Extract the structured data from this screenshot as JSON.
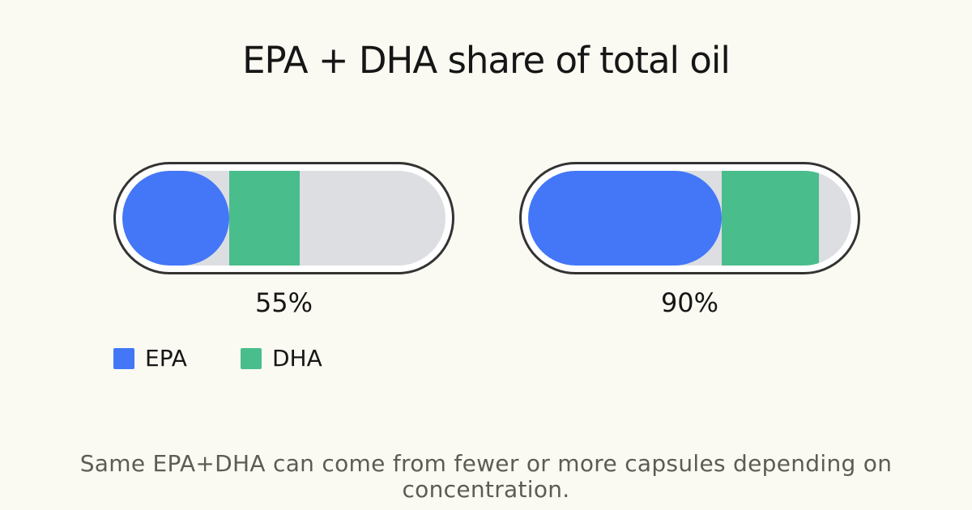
{
  "title": "EPA + DHA share of total oil",
  "colors": {
    "background": "#FAFAF2",
    "epa": "#4377F7",
    "dha": "#4ABD8C",
    "track": "#DCDEE2",
    "capsule_ring": "#FFFFFF",
    "capsule_outline": "#333333",
    "text_primary": "#161616",
    "text_muted": "#5C5C56"
  },
  "capsules": [
    {
      "total_label": "55%",
      "epa_pct": 33,
      "dha_pct": 22
    },
    {
      "total_label": "90%",
      "epa_pct": 60,
      "dha_pct": 30
    }
  ],
  "legend": [
    {
      "label": "EPA",
      "color": "#4377F7"
    },
    {
      "label": "DHA",
      "color": "#4ABD8C"
    }
  ],
  "footer": "Same EPA+DHA can come from fewer or more capsules depending on concentration.",
  "chart_data": {
    "type": "bar",
    "variant": "stacked-horizontal-capsule-fill",
    "title": "EPA + DHA share of total oil",
    "series": [
      {
        "name": "EPA",
        "color": "#4377F7",
        "values": [
          33,
          60
        ]
      },
      {
        "name": "DHA",
        "color": "#4ABD8C",
        "values": [
          22,
          30
        ]
      }
    ],
    "total_labels": [
      "55%",
      "90%"
    ],
    "xlim": [
      0,
      100
    ],
    "track_color": "#DCDEE2",
    "grid": false,
    "legend_position": "bottom-left",
    "annotation": "Same EPA+DHA can come from fewer or more capsules depending on concentration."
  }
}
